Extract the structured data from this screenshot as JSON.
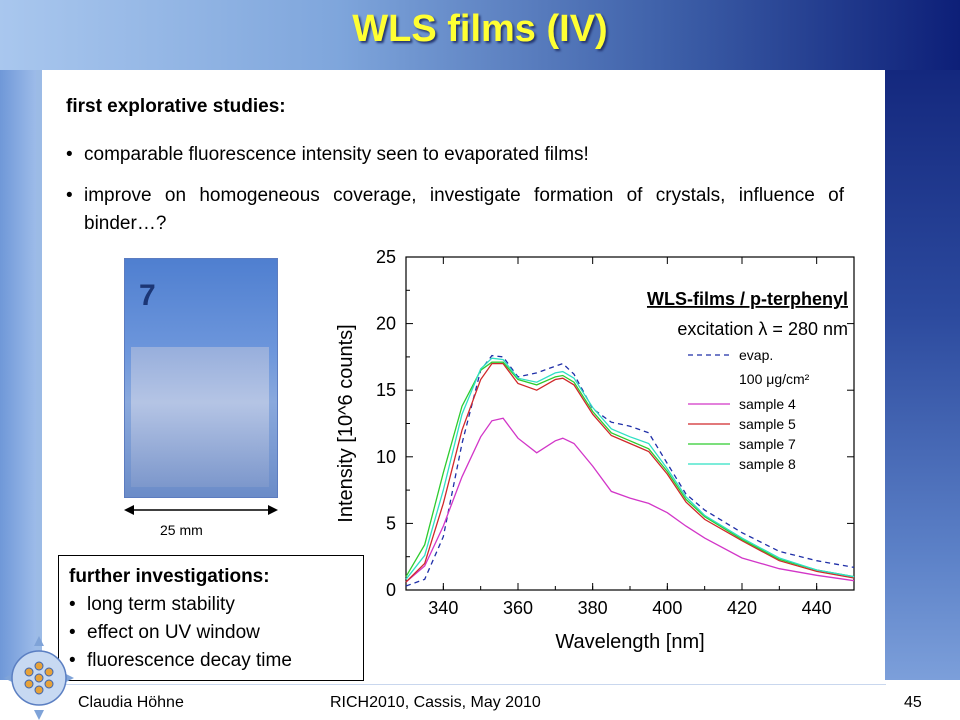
{
  "title": "WLS films (IV)",
  "intro": {
    "heading": "first explorative studies:",
    "bullets": [
      "comparable fluorescence intensity seen to evaporated films!",
      "improve on homogeneous coverage, investigate formation of crystals, influence of binder…?"
    ]
  },
  "photo": {
    "sample_mark": "7",
    "scale_label": "25 mm"
  },
  "investigations": {
    "heading": "further investigations:",
    "items": [
      "long term stability",
      "effect on UV window",
      "fluorescence decay time"
    ]
  },
  "footer": {
    "author": "Claudia Höhne",
    "conference": "RICH2010, Cassis, May 2010",
    "page": "45"
  },
  "colors": {
    "title": "#ffff33",
    "evap": "#1f2fa8",
    "sample4": "#d236c8",
    "sample5": "#d0282a",
    "sample7": "#2ecc2e",
    "sample8": "#2fe0c4"
  },
  "chart_data": {
    "type": "line",
    "xlabel": "Wavelength [nm]",
    "ylabel": "Intensity [10^6 counts]",
    "xlim": [
      330,
      450
    ],
    "ylim": [
      0,
      25
    ],
    "xticks": [
      340,
      360,
      380,
      400,
      420,
      440
    ],
    "yticks": [
      0,
      5,
      10,
      15,
      20,
      25
    ],
    "annotation_title": "WLS-films / p-terphenyl",
    "annotation_excitation": "excitation λ = 280 nm",
    "legend_subtitle": "100 μg/cm²",
    "legend_position": "right",
    "series": [
      {
        "name": "evap.",
        "style": "dashed",
        "x": [
          330,
          335,
          340,
          345,
          350,
          353,
          356,
          360,
          365,
          370,
          372,
          375,
          380,
          385,
          390,
          395,
          400,
          405,
          410,
          420,
          430,
          440,
          450
        ],
        "y": [
          0.3,
          0.8,
          4,
          11,
          16.5,
          17.6,
          17.5,
          16,
          16.3,
          16.8,
          17,
          16.2,
          13.6,
          12.6,
          12.3,
          11.8,
          9.5,
          7.2,
          6,
          4.3,
          2.9,
          2.2,
          1.7
        ]
      },
      {
        "name": "sample 4",
        "style": "solid",
        "x": [
          330,
          335,
          340,
          345,
          350,
          353,
          356,
          360,
          365,
          370,
          372,
          375,
          380,
          385,
          390,
          395,
          400,
          405,
          410,
          420,
          430,
          440,
          450
        ],
        "y": [
          0.6,
          1.8,
          4.8,
          8.5,
          11.5,
          12.7,
          12.9,
          11.4,
          10.3,
          11.2,
          11.4,
          11,
          9.3,
          7.4,
          6.9,
          6.5,
          5.8,
          4.8,
          3.9,
          2.4,
          1.6,
          1.1,
          0.7
        ]
      },
      {
        "name": "sample 5",
        "style": "solid",
        "x": [
          330,
          335,
          340,
          345,
          350,
          353,
          356,
          360,
          365,
          370,
          372,
          375,
          380,
          385,
          390,
          395,
          400,
          405,
          410,
          420,
          430,
          440,
          450
        ],
        "y": [
          0.6,
          2,
          6.5,
          12,
          15.8,
          17,
          17,
          15.5,
          15,
          15.8,
          15.9,
          15.4,
          13.2,
          11.6,
          11,
          10.4,
          8.7,
          6.6,
          5.3,
          3.7,
          2.2,
          1.4,
          0.9
        ]
      },
      {
        "name": "sample 7",
        "style": "solid",
        "x": [
          330,
          335,
          340,
          345,
          350,
          353,
          356,
          360,
          365,
          370,
          372,
          375,
          380,
          385,
          390,
          395,
          400,
          405,
          410,
          420,
          430,
          440,
          450
        ],
        "y": [
          1,
          3.4,
          8.8,
          13.8,
          16.5,
          17.1,
          17.1,
          15.8,
          15.4,
          16,
          16.1,
          15.6,
          13.4,
          11.8,
          11.2,
          10.6,
          8.9,
          6.8,
          5.5,
          3.8,
          2.3,
          1.5,
          1
        ]
      },
      {
        "name": "sample 8",
        "style": "solid",
        "x": [
          330,
          335,
          340,
          345,
          350,
          353,
          356,
          360,
          365,
          370,
          372,
          375,
          380,
          385,
          390,
          395,
          400,
          405,
          410,
          420,
          430,
          440,
          450
        ],
        "y": [
          0.8,
          2.6,
          7.5,
          13.2,
          16.6,
          17.4,
          17.3,
          15.9,
          15.6,
          16.3,
          16.4,
          15.9,
          13.7,
          12.1,
          11.5,
          11,
          9.1,
          7,
          5.6,
          3.9,
          2.4,
          1.5,
          1
        ]
      }
    ]
  }
}
